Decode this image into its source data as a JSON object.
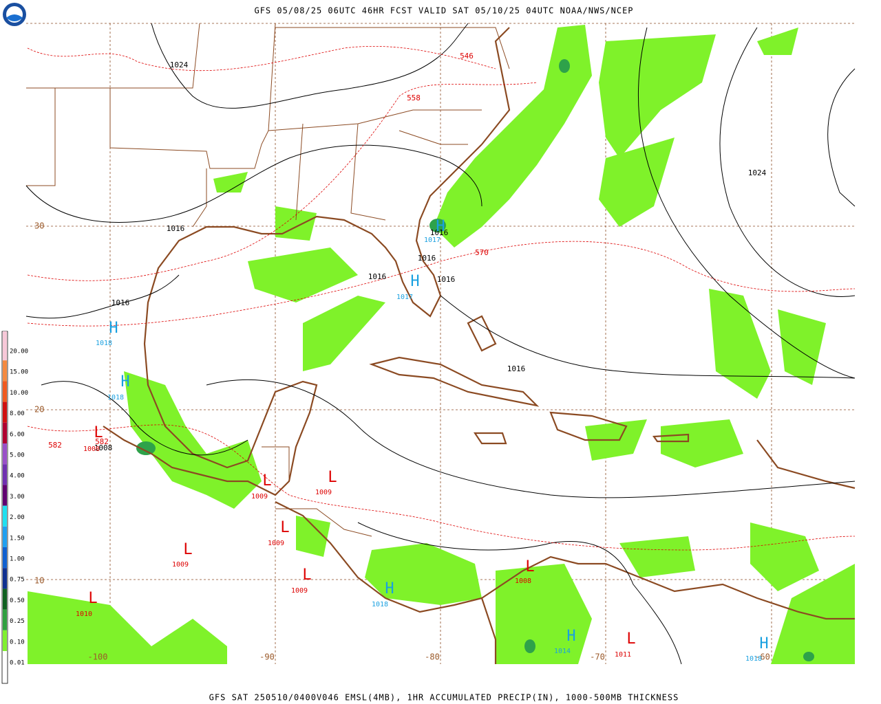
{
  "header": {
    "title": "GFS 05/08/25 06UTC 46HR FCST VALID SAT 05/10/25 04UTC NOAA/NWS/NCEP"
  },
  "footer": {
    "caption": "GFS SAT 250510/0400V046 EMSL(4MB), 1HR ACCUMULATED PRECIP(IN), 1000-500MB THICKNESS"
  },
  "colorbar": [
    {
      "label": "20.00",
      "color": "#f7c8d8"
    },
    {
      "label": "15.00",
      "color": "#f48a40"
    },
    {
      "label": "10.00",
      "color": "#f05a20"
    },
    {
      "label": "8.00",
      "color": "#d01010"
    },
    {
      "label": "6.00",
      "color": "#b00030"
    },
    {
      "label": "5.00",
      "color": "#9a50c8"
    },
    {
      "label": "4.00",
      "color": "#7030b0"
    },
    {
      "label": "3.00",
      "color": "#600070"
    },
    {
      "label": "2.00",
      "color": "#20e0f0"
    },
    {
      "label": "1.50",
      "color": "#20a0f0"
    },
    {
      "label": "1.00",
      "color": "#1060d0"
    },
    {
      "label": "0.75",
      "color": "#103090"
    },
    {
      "label": "0.50",
      "color": "#106020"
    },
    {
      "label": "0.25",
      "color": "#30a040"
    },
    {
      "label": "0.10",
      "color": "#80f030"
    },
    {
      "label": "0.01",
      "color": "#ffffff"
    }
  ],
  "latitude_labels": [
    "30",
    "20",
    "10"
  ],
  "longitude_labels": [
    "-100",
    "-90",
    "-80",
    "-70",
    "-60"
  ],
  "isobar_labels": [
    "1024",
    "1024",
    "1016",
    "1016",
    "1016",
    "1016",
    "1016",
    "1016",
    "1016",
    "1008"
  ],
  "thickness_labels": [
    "546",
    "558",
    "570",
    "582",
    "582"
  ],
  "highs": [
    {
      "symbol": "H",
      "value": "1018"
    },
    {
      "symbol": "H",
      "value": "1018"
    },
    {
      "symbol": "H",
      "value": "1017"
    },
    {
      "symbol": "H",
      "value": "1017"
    },
    {
      "symbol": "H",
      "value": "1018"
    },
    {
      "symbol": "H",
      "value": "1014"
    },
    {
      "symbol": "H",
      "value": "1018"
    }
  ],
  "lows": [
    {
      "symbol": "L",
      "value": "1008"
    },
    {
      "symbol": "L",
      "value": "1009"
    },
    {
      "symbol": "L",
      "value": "1009"
    },
    {
      "symbol": "L",
      "value": "1009"
    },
    {
      "symbol": "L",
      "value": "1009"
    },
    {
      "symbol": "L",
      "value": "1009"
    },
    {
      "symbol": "L",
      "value": "1010"
    },
    {
      "symbol": "L",
      "value": "1008"
    },
    {
      "symbol": "L",
      "value": "1011"
    }
  ]
}
